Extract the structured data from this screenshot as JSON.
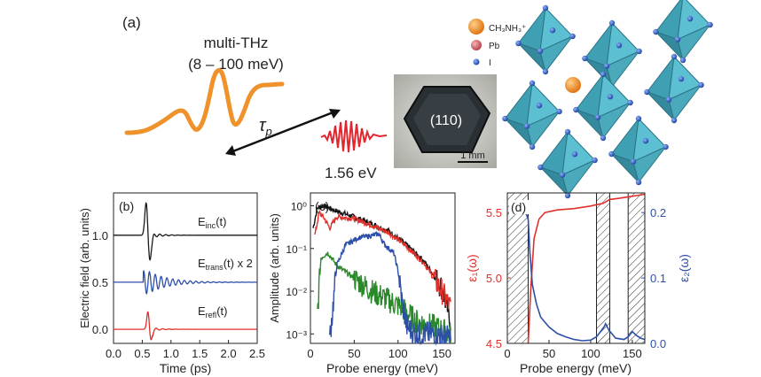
{
  "panel_a": {
    "label": "(a)",
    "pulse_title": "multi-THz",
    "pulse_range": "(8 – 100 meV)",
    "delay_symbol": "τ",
    "delay_subscript": "p",
    "probe_energy": "1.56 eV",
    "crystal_face": "(110)",
    "scale_bar": "1 mm",
    "legend": {
      "cation": "CH₃NH₃⁺",
      "metal": "Pb",
      "halide": "I"
    },
    "colors": {
      "thz": "#f0922b",
      "nir": "#e2262e",
      "octahedron": "#4fb3c6",
      "cation": "#f08a1c",
      "pb": "#d9646c",
      "iodine": "#2f5db8"
    }
  },
  "chart_data": [
    {
      "type": "line",
      "panel": "(b)",
      "xlabel": "Time (ps)",
      "ylabel": "Electric field (arb. units)",
      "xlim": [
        0.0,
        2.5
      ],
      "ylim": [
        -0.15,
        1.45
      ],
      "xticks": [
        "0.0",
        "0.5",
        "1.0",
        "1.5",
        "2.0",
        "2.5"
      ],
      "yticks": [
        "0.0",
        "0.5",
        "1.0"
      ],
      "series": [
        {
          "name": "E_inc(t)",
          "label_main": "E",
          "label_sub": "inc",
          "label_tail": "(t)",
          "color": "#1a1a1a",
          "offset": 1.0,
          "peak_time": 0.57,
          "peak_value": 1.37
        },
        {
          "name": "E_trans(t) x 2",
          "label_main": "E",
          "label_sub": "trans",
          "label_tail": "(t) x 2",
          "color": "#2d4fa8",
          "offset": 0.5,
          "peak_time": 0.6,
          "peak_value": 0.62
        },
        {
          "name": "E_refl(t)",
          "label_main": "E",
          "label_sub": "refl",
          "label_tail": "(t)",
          "color": "#e0302b",
          "offset": 0.0,
          "peak_time": 0.6,
          "peak_value": 0.2
        }
      ]
    },
    {
      "type": "line",
      "panel": "(c)",
      "xlabel": "Probe energy (meV)",
      "ylabel": "Amplitude (arb. units)",
      "yscale": "log",
      "xlim": [
        0,
        165
      ],
      "ylim": [
        0.0006,
        2.0
      ],
      "xticks": [
        "0",
        "50",
        "100",
        "150"
      ],
      "yticks": [
        "10⁰",
        "10⁻¹",
        "10⁻²",
        "10⁻³"
      ],
      "series": [
        {
          "name": "black",
          "color": "#111111",
          "x": [
            3,
            8,
            15,
            30,
            50,
            70,
            90,
            110,
            130,
            150,
            160
          ],
          "y": [
            0.3,
            0.9,
            1.0,
            0.75,
            0.55,
            0.38,
            0.25,
            0.12,
            0.05,
            0.012,
            0.002
          ]
        },
        {
          "name": "red",
          "color": "#e0302b",
          "x": [
            5,
            10,
            16,
            22,
            30,
            50,
            70,
            90,
            110,
            130,
            150,
            160
          ],
          "y": [
            0.2,
            0.7,
            0.5,
            0.3,
            0.55,
            0.5,
            0.35,
            0.23,
            0.11,
            0.045,
            0.01,
            0.004
          ]
        },
        {
          "name": "green",
          "color": "#2a8a2a",
          "x": [
            8,
            12,
            20,
            30,
            50,
            70,
            90,
            105,
            120,
            140,
            160
          ],
          "y": [
            0.003,
            0.06,
            0.08,
            0.04,
            0.02,
            0.01,
            0.006,
            0.004,
            0.002,
            0.0015,
            0.001
          ]
        },
        {
          "name": "blue",
          "color": "#2d4fa8",
          "x": [
            22,
            25,
            30,
            40,
            55,
            70,
            78,
            85,
            95,
            100,
            105,
            110,
            120,
            140,
            160
          ],
          "y": [
            0.0008,
            0.003,
            0.04,
            0.12,
            0.18,
            0.2,
            0.22,
            0.12,
            0.08,
            0.03,
            0.005,
            0.0015,
            0.001,
            0.001,
            0.0008
          ]
        }
      ]
    },
    {
      "type": "line",
      "panel": "(d)",
      "xlabel": "Probe energy (meV)",
      "ylabel_left": "ε₁(ω)",
      "ylabel_right": "ε₂(ω)",
      "xlim": [
        0,
        165
      ],
      "ylim_left": [
        4.5,
        5.65
      ],
      "ylim_right": [
        0.0,
        0.23
      ],
      "xticks": [
        "0",
        "50",
        "100",
        "150"
      ],
      "yticks_left": [
        "4.5",
        "5.0",
        "5.5"
      ],
      "yticks_right": [
        "0.0",
        "0.1",
        "0.2"
      ],
      "hatched_ranges": [
        [
          0,
          25
        ],
        [
          107,
          123
        ],
        [
          145,
          165
        ]
      ],
      "series": [
        {
          "name": "epsilon1",
          "axis": "left",
          "color": "#e0302b",
          "x": [
            25,
            28,
            32,
            38,
            45,
            60,
            80,
            100,
            107,
            115,
            123,
            135,
            145,
            155,
            165
          ],
          "y": [
            4.5,
            4.9,
            5.3,
            5.45,
            5.5,
            5.52,
            5.53,
            5.55,
            5.56,
            5.57,
            5.6,
            5.61,
            5.62,
            5.63,
            5.64
          ]
        },
        {
          "name": "epsilon2",
          "axis": "right",
          "color": "#2d4fa8",
          "x": [
            22,
            25,
            27,
            30,
            35,
            40,
            50,
            60,
            70,
            80,
            90,
            100,
            107,
            113,
            116,
            118,
            122,
            130,
            140,
            145,
            150,
            155,
            160,
            165
          ],
          "y": [
            0.2,
            0.19,
            0.14,
            0.09,
            0.06,
            0.04,
            0.025,
            0.015,
            0.01,
            0.006,
            0.004,
            0.005,
            0.01,
            0.02,
            0.025,
            0.03,
            0.02,
            0.008,
            0.006,
            0.01,
            0.018,
            0.012,
            0.008,
            0.006
          ]
        }
      ]
    }
  ]
}
